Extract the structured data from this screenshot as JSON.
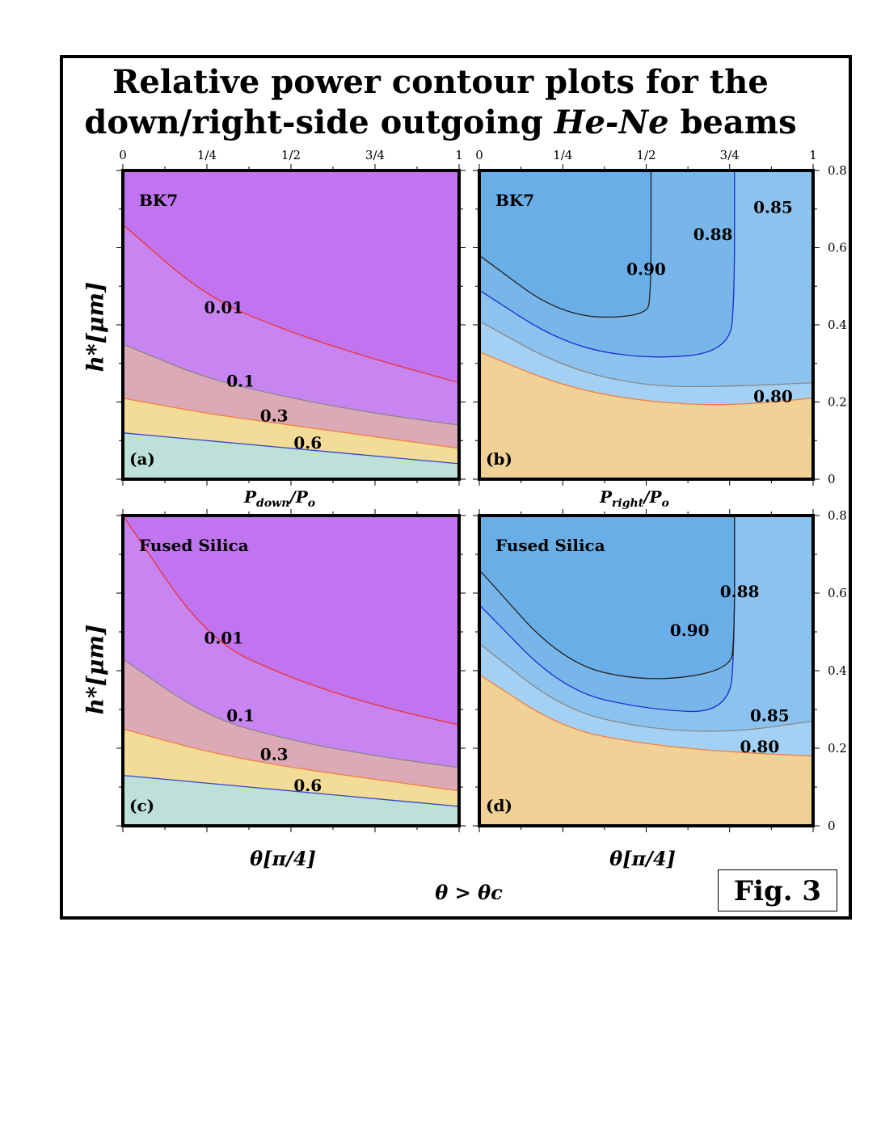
{
  "title_line1": "Relative power contour plots for the",
  "title_line2_a": "down/right-side outgoing ",
  "title_line2_b": "He-Ne",
  "title_line2_c": " beams",
  "fig_label": "Fig. 3",
  "ylabel": "h*[μm]",
  "xlabel_theta": "θ[π/4]",
  "bottom_condition": "θ > θc",
  "label_down": "Pdown/Po",
  "label_right": "Pright/Po",
  "top_ticks": [
    "0",
    "1/4",
    "1/2",
    "3/4",
    "1"
  ],
  "right_ticks": [
    "0",
    "0.2",
    "0.4",
    "0.6",
    "0.8"
  ],
  "chart_data": [
    {
      "type": "area",
      "panel": "(a)",
      "material": "BK7",
      "quantity": "Pdown/Po",
      "xlim": [
        0,
        1
      ],
      "ylim": [
        0,
        0.8
      ],
      "x": [
        0,
        0.25,
        0.5,
        0.75,
        1
      ],
      "colors": {
        "background": "#c074ef",
        "above_0.01": "#c074ef",
        "0.01-0.1": "#c884f0",
        "0.1-0.3": "#dcaab6",
        "0.3-0.6": "#f2dc98",
        "below_0.6": "#bde0d8"
      },
      "series": [
        {
          "name": "0.01",
          "color": "#e33",
          "values": [
            0.66,
            0.47,
            0.38,
            0.31,
            0.25
          ]
        },
        {
          "name": "0.1",
          "color": "#888",
          "values": [
            0.35,
            0.26,
            0.21,
            0.17,
            0.14
          ]
        },
        {
          "name": "0.3",
          "color": "#f08040",
          "values": [
            0.21,
            0.17,
            0.14,
            0.11,
            0.08
          ]
        },
        {
          "name": "0.6",
          "color": "#3344cc",
          "values": [
            0.12,
            0.1,
            0.08,
            0.06,
            0.04
          ]
        }
      ],
      "labels": [
        {
          "text": "0.01",
          "x": 0.3,
          "y": 0.43
        },
        {
          "text": "0.1",
          "x": 0.35,
          "y": 0.24
        },
        {
          "text": "0.3",
          "x": 0.45,
          "y": 0.15
        },
        {
          "text": "0.6",
          "x": 0.55,
          "y": 0.08
        }
      ]
    },
    {
      "type": "area",
      "panel": "(b)",
      "material": "BK7",
      "quantity": "Pright/Po",
      "xlim": [
        0,
        1
      ],
      "ylim": [
        0,
        0.8
      ],
      "x": [
        0,
        0.25,
        0.5,
        0.75,
        1
      ],
      "colors": {
        "above_0.90": "#6aaee8",
        "0.88-0.90": "#73b4ec",
        "0.85-0.88": "#8cc2ee",
        "0.80-0.85": "#a4d0f3",
        "below_0.80": "#f2d196"
      },
      "series": [
        {
          "name": "0.90",
          "color": "#222",
          "values": [
            0.58,
            0.42,
            0.42,
            null,
            null
          ]
        },
        {
          "name": "0.88",
          "color": "#1a2bd6",
          "values": [
            0.49,
            0.35,
            0.31,
            0.33,
            null
          ]
        },
        {
          "name": "0.85",
          "color": "#888",
          "values": [
            0.41,
            0.29,
            0.24,
            0.24,
            0.25
          ]
        },
        {
          "name": "0.80",
          "color": "#f08040",
          "values": [
            0.33,
            0.24,
            0.2,
            0.19,
            0.21
          ]
        }
      ],
      "labels": [
        {
          "text": "0.90",
          "x": 0.5,
          "y": 0.53
        },
        {
          "text": "0.88",
          "x": 0.7,
          "y": 0.62
        },
        {
          "text": "0.85",
          "x": 0.88,
          "y": 0.69
        },
        {
          "text": "0.80",
          "x": 0.88,
          "y": 0.2
        }
      ]
    },
    {
      "type": "area",
      "panel": "(c)",
      "material": "Fused Silica",
      "quantity": "Pdown/Po",
      "xlim": [
        0,
        1
      ],
      "ylim": [
        0,
        0.8
      ],
      "x": [
        0,
        0.25,
        0.5,
        0.75,
        1
      ],
      "series": [
        {
          "name": "0.01",
          "color": "#e33",
          "values": [
            0.8,
            0.48,
            0.38,
            0.31,
            0.26
          ]
        },
        {
          "name": "0.1",
          "color": "#888",
          "values": [
            0.43,
            0.28,
            0.22,
            0.18,
            0.15
          ]
        },
        {
          "name": "0.3",
          "color": "#f08040",
          "values": [
            0.25,
            0.19,
            0.15,
            0.12,
            0.09
          ]
        },
        {
          "name": "0.6",
          "color": "#3344cc",
          "values": [
            0.13,
            0.11,
            0.09,
            0.07,
            0.05
          ]
        }
      ],
      "labels": [
        {
          "text": "0.01",
          "x": 0.3,
          "y": 0.47
        },
        {
          "text": "0.1",
          "x": 0.35,
          "y": 0.27
        },
        {
          "text": "0.3",
          "x": 0.45,
          "y": 0.17
        },
        {
          "text": "0.6",
          "x": 0.55,
          "y": 0.09
        }
      ]
    },
    {
      "type": "area",
      "panel": "(d)",
      "material": "Fused Silica",
      "quantity": "Pright/Po",
      "xlim": [
        0,
        1
      ],
      "ylim": [
        0,
        0.8
      ],
      "x": [
        0,
        0.25,
        0.5,
        0.75,
        1
      ],
      "series": [
        {
          "name": "0.90",
          "color": "#222",
          "values": [
            0.66,
            0.42,
            0.37,
            0.4,
            null
          ]
        },
        {
          "name": "0.88",
          "color": "#1a2bd6",
          "values": [
            0.57,
            0.35,
            0.3,
            0.29,
            null
          ]
        },
        {
          "name": "0.85",
          "color": "#888",
          "values": [
            0.47,
            0.3,
            0.25,
            0.24,
            0.27
          ]
        },
        {
          "name": "0.80",
          "color": "#f08040",
          "values": [
            0.39,
            0.25,
            0.21,
            0.19,
            0.18
          ]
        }
      ],
      "labels": [
        {
          "text": "0.90",
          "x": 0.63,
          "y": 0.49
        },
        {
          "text": "0.88",
          "x": 0.78,
          "y": 0.59
        },
        {
          "text": "0.85",
          "x": 0.87,
          "y": 0.27
        },
        {
          "text": "0.80",
          "x": 0.84,
          "y": 0.19
        }
      ]
    }
  ]
}
